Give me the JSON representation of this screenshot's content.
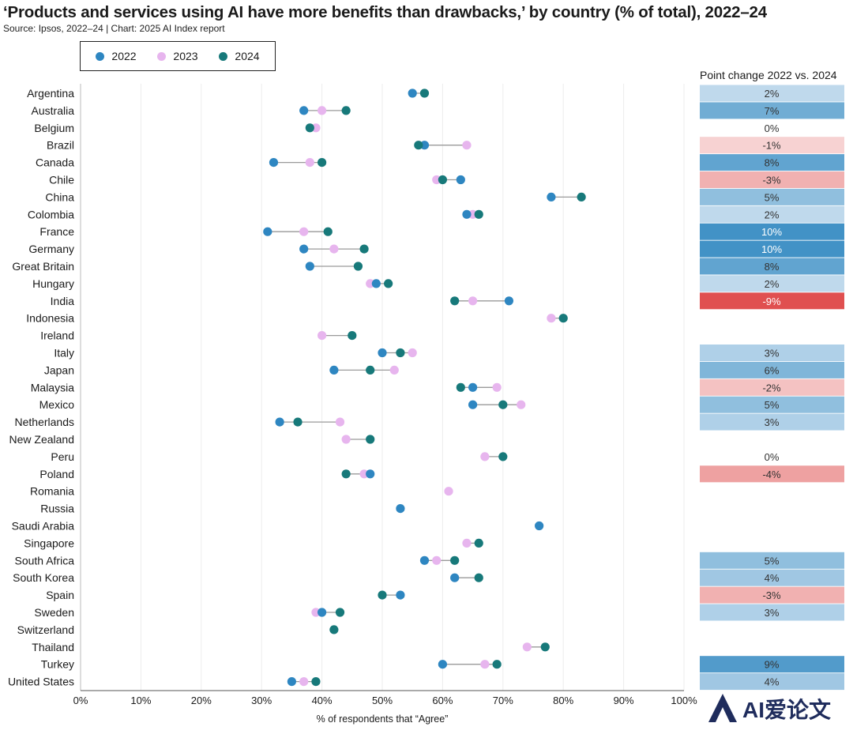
{
  "title": "‘Products and services using AI have more benefits than drawbacks,’ by country (% of total), 2022–24",
  "subtitle": "Source: Ipsos, 2022–24 | Chart: 2025 AI Index report",
  "change_header": "Point change 2022 vs. 2024",
  "watermark_text": "AI爱论文",
  "chart_data": {
    "type": "scatter",
    "xlabel": "% of respondents that “Agree”",
    "xlim": [
      0,
      100
    ],
    "x_ticks": [
      "0%",
      "10%",
      "20%",
      "30%",
      "40%",
      "50%",
      "60%",
      "70%",
      "80%",
      "90%",
      "100%"
    ],
    "grid": true,
    "legend_placement": "top-left",
    "series": [
      {
        "name": "2022",
        "color": "#2e86c1"
      },
      {
        "name": "2023",
        "color": "#e7b5ee"
      },
      {
        "name": "2024",
        "color": "#17797a"
      }
    ],
    "rows": [
      {
        "country": "Argentina",
        "v2022": 55,
        "v2023": null,
        "v2024": 57,
        "change": "2%",
        "change_value": 2
      },
      {
        "country": "Australia",
        "v2022": 37,
        "v2023": 40,
        "v2024": 44,
        "change": "7%",
        "change_value": 7
      },
      {
        "country": "Belgium",
        "v2022": null,
        "v2023": 39,
        "v2024": 38,
        "change": "0%",
        "change_value": 0
      },
      {
        "country": "Brazil",
        "v2022": 57,
        "v2023": 64,
        "v2024": 56,
        "change": "-1%",
        "change_value": -1
      },
      {
        "country": "Canada",
        "v2022": 32,
        "v2023": 38,
        "v2024": 40,
        "change": "8%",
        "change_value": 8
      },
      {
        "country": "Chile",
        "v2022": 63,
        "v2023": 59,
        "v2024": 60,
        "change": "-3%",
        "change_value": -3
      },
      {
        "country": "China",
        "v2022": 78,
        "v2023": null,
        "v2024": 83,
        "change": "5%",
        "change_value": 5
      },
      {
        "country": "Colombia",
        "v2022": 64,
        "v2023": 65,
        "v2024": 66,
        "change": "2%",
        "change_value": 2
      },
      {
        "country": "France",
        "v2022": 31,
        "v2023": 37,
        "v2024": 41,
        "change": "10%",
        "change_value": 10
      },
      {
        "country": "Germany",
        "v2022": 37,
        "v2023": 42,
        "v2024": 47,
        "change": "10%",
        "change_value": 10
      },
      {
        "country": "Great Britain",
        "v2022": 38,
        "v2023": null,
        "v2024": 46,
        "change": "8%",
        "change_value": 8
      },
      {
        "country": "Hungary",
        "v2022": 49,
        "v2023": 48,
        "v2024": 51,
        "change": "2%",
        "change_value": 2
      },
      {
        "country": "India",
        "v2022": 71,
        "v2023": 65,
        "v2024": 62,
        "change": "-9%",
        "change_value": -9
      },
      {
        "country": "Indonesia",
        "v2022": null,
        "v2023": 78,
        "v2024": 80,
        "change": "",
        "change_value": null
      },
      {
        "country": "Ireland",
        "v2022": null,
        "v2023": 40,
        "v2024": 45,
        "change": "",
        "change_value": null
      },
      {
        "country": "Italy",
        "v2022": 50,
        "v2023": 55,
        "v2024": 53,
        "change": "3%",
        "change_value": 3
      },
      {
        "country": "Japan",
        "v2022": 42,
        "v2023": 52,
        "v2024": 48,
        "change": "6%",
        "change_value": 6
      },
      {
        "country": "Malaysia",
        "v2022": 65,
        "v2023": 69,
        "v2024": 63,
        "change": "-2%",
        "change_value": -2
      },
      {
        "country": "Mexico",
        "v2022": 65,
        "v2023": 73,
        "v2024": 70,
        "change": "5%",
        "change_value": 5
      },
      {
        "country": "Netherlands",
        "v2022": 33,
        "v2023": 43,
        "v2024": 36,
        "change": "3%",
        "change_value": 3
      },
      {
        "country": "New Zealand",
        "v2022": null,
        "v2023": 44,
        "v2024": 48,
        "change": "",
        "change_value": null
      },
      {
        "country": "Peru",
        "v2022": null,
        "v2023": 67,
        "v2024": 70,
        "change": "0%",
        "change_value": 0
      },
      {
        "country": "Poland",
        "v2022": 48,
        "v2023": 47,
        "v2024": 44,
        "change": "-4%",
        "change_value": -4
      },
      {
        "country": "Romania",
        "v2022": null,
        "v2023": 61,
        "v2024": null,
        "change": "",
        "change_value": null
      },
      {
        "country": "Russia",
        "v2022": 53,
        "v2023": null,
        "v2024": null,
        "change": "",
        "change_value": null
      },
      {
        "country": "Saudi Arabia",
        "v2022": 76,
        "v2023": null,
        "v2024": null,
        "change": "",
        "change_value": null
      },
      {
        "country": "Singapore",
        "v2022": null,
        "v2023": 64,
        "v2024": 66,
        "change": "",
        "change_value": null
      },
      {
        "country": "South Africa",
        "v2022": 57,
        "v2023": 59,
        "v2024": 62,
        "change": "5%",
        "change_value": 5
      },
      {
        "country": "South Korea",
        "v2022": 62,
        "v2023": null,
        "v2024": 66,
        "change": "4%",
        "change_value": 4
      },
      {
        "country": "Spain",
        "v2022": 53,
        "v2023": null,
        "v2024": 50,
        "change": "-3%",
        "change_value": -3
      },
      {
        "country": "Sweden",
        "v2022": 40,
        "v2023": 39,
        "v2024": 43,
        "change": "3%",
        "change_value": 3
      },
      {
        "country": "Switzerland",
        "v2022": null,
        "v2023": null,
        "v2024": 42,
        "change": "",
        "change_value": null
      },
      {
        "country": "Thailand",
        "v2022": null,
        "v2023": 74,
        "v2024": 77,
        "change": "",
        "change_value": null
      },
      {
        "country": "Turkey",
        "v2022": 60,
        "v2023": 67,
        "v2024": 69,
        "change": "9%",
        "change_value": 9
      },
      {
        "country": "United States",
        "v2022": 35,
        "v2023": 37,
        "v2024": 39,
        "change": "4%",
        "change_value": 4
      }
    ]
  }
}
